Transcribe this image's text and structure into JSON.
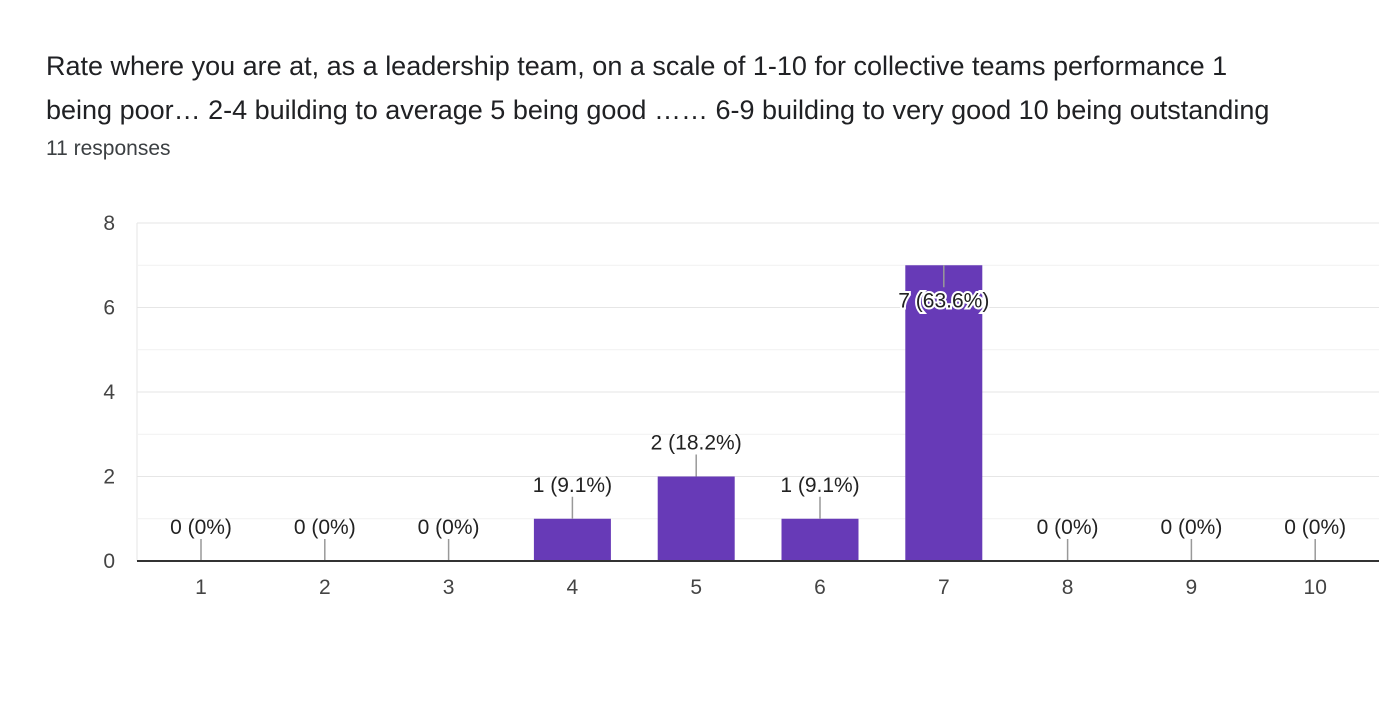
{
  "question": {
    "line1": "Rate where you are at, as a leadership team, on a scale of 1-10 for collective teams performance  1",
    "line2": "being poor…   2-4 building to average  5 being good ……   6-9 building to very good  10 being outstanding"
  },
  "responses_label": "11 responses",
  "colors": {
    "bar": "#673ab7",
    "grid": "#e6e6e6",
    "axis": "#333333",
    "leader": "#999999"
  },
  "chart_data": {
    "type": "bar",
    "title": "Rate where you are at, as a leadership team, on a scale of 1-10 for collective teams performance",
    "categories": [
      "1",
      "2",
      "3",
      "4",
      "5",
      "6",
      "7",
      "8",
      "9",
      "10"
    ],
    "values": [
      0,
      0,
      0,
      1,
      2,
      1,
      7,
      0,
      0,
      0
    ],
    "data_labels": [
      "0 (0%)",
      "0 (0%)",
      "0 (0%)",
      "1 (9.1%)",
      "2 (18.2%)",
      "1 (9.1%)",
      "7 (63.6%)",
      "0 (0%)",
      "0 (0%)",
      "0 (0%)"
    ],
    "y_ticks": [
      0,
      2,
      4,
      6,
      8
    ],
    "ylim": [
      0,
      8
    ],
    "xlabel": "",
    "ylabel": "",
    "grid": true
  }
}
